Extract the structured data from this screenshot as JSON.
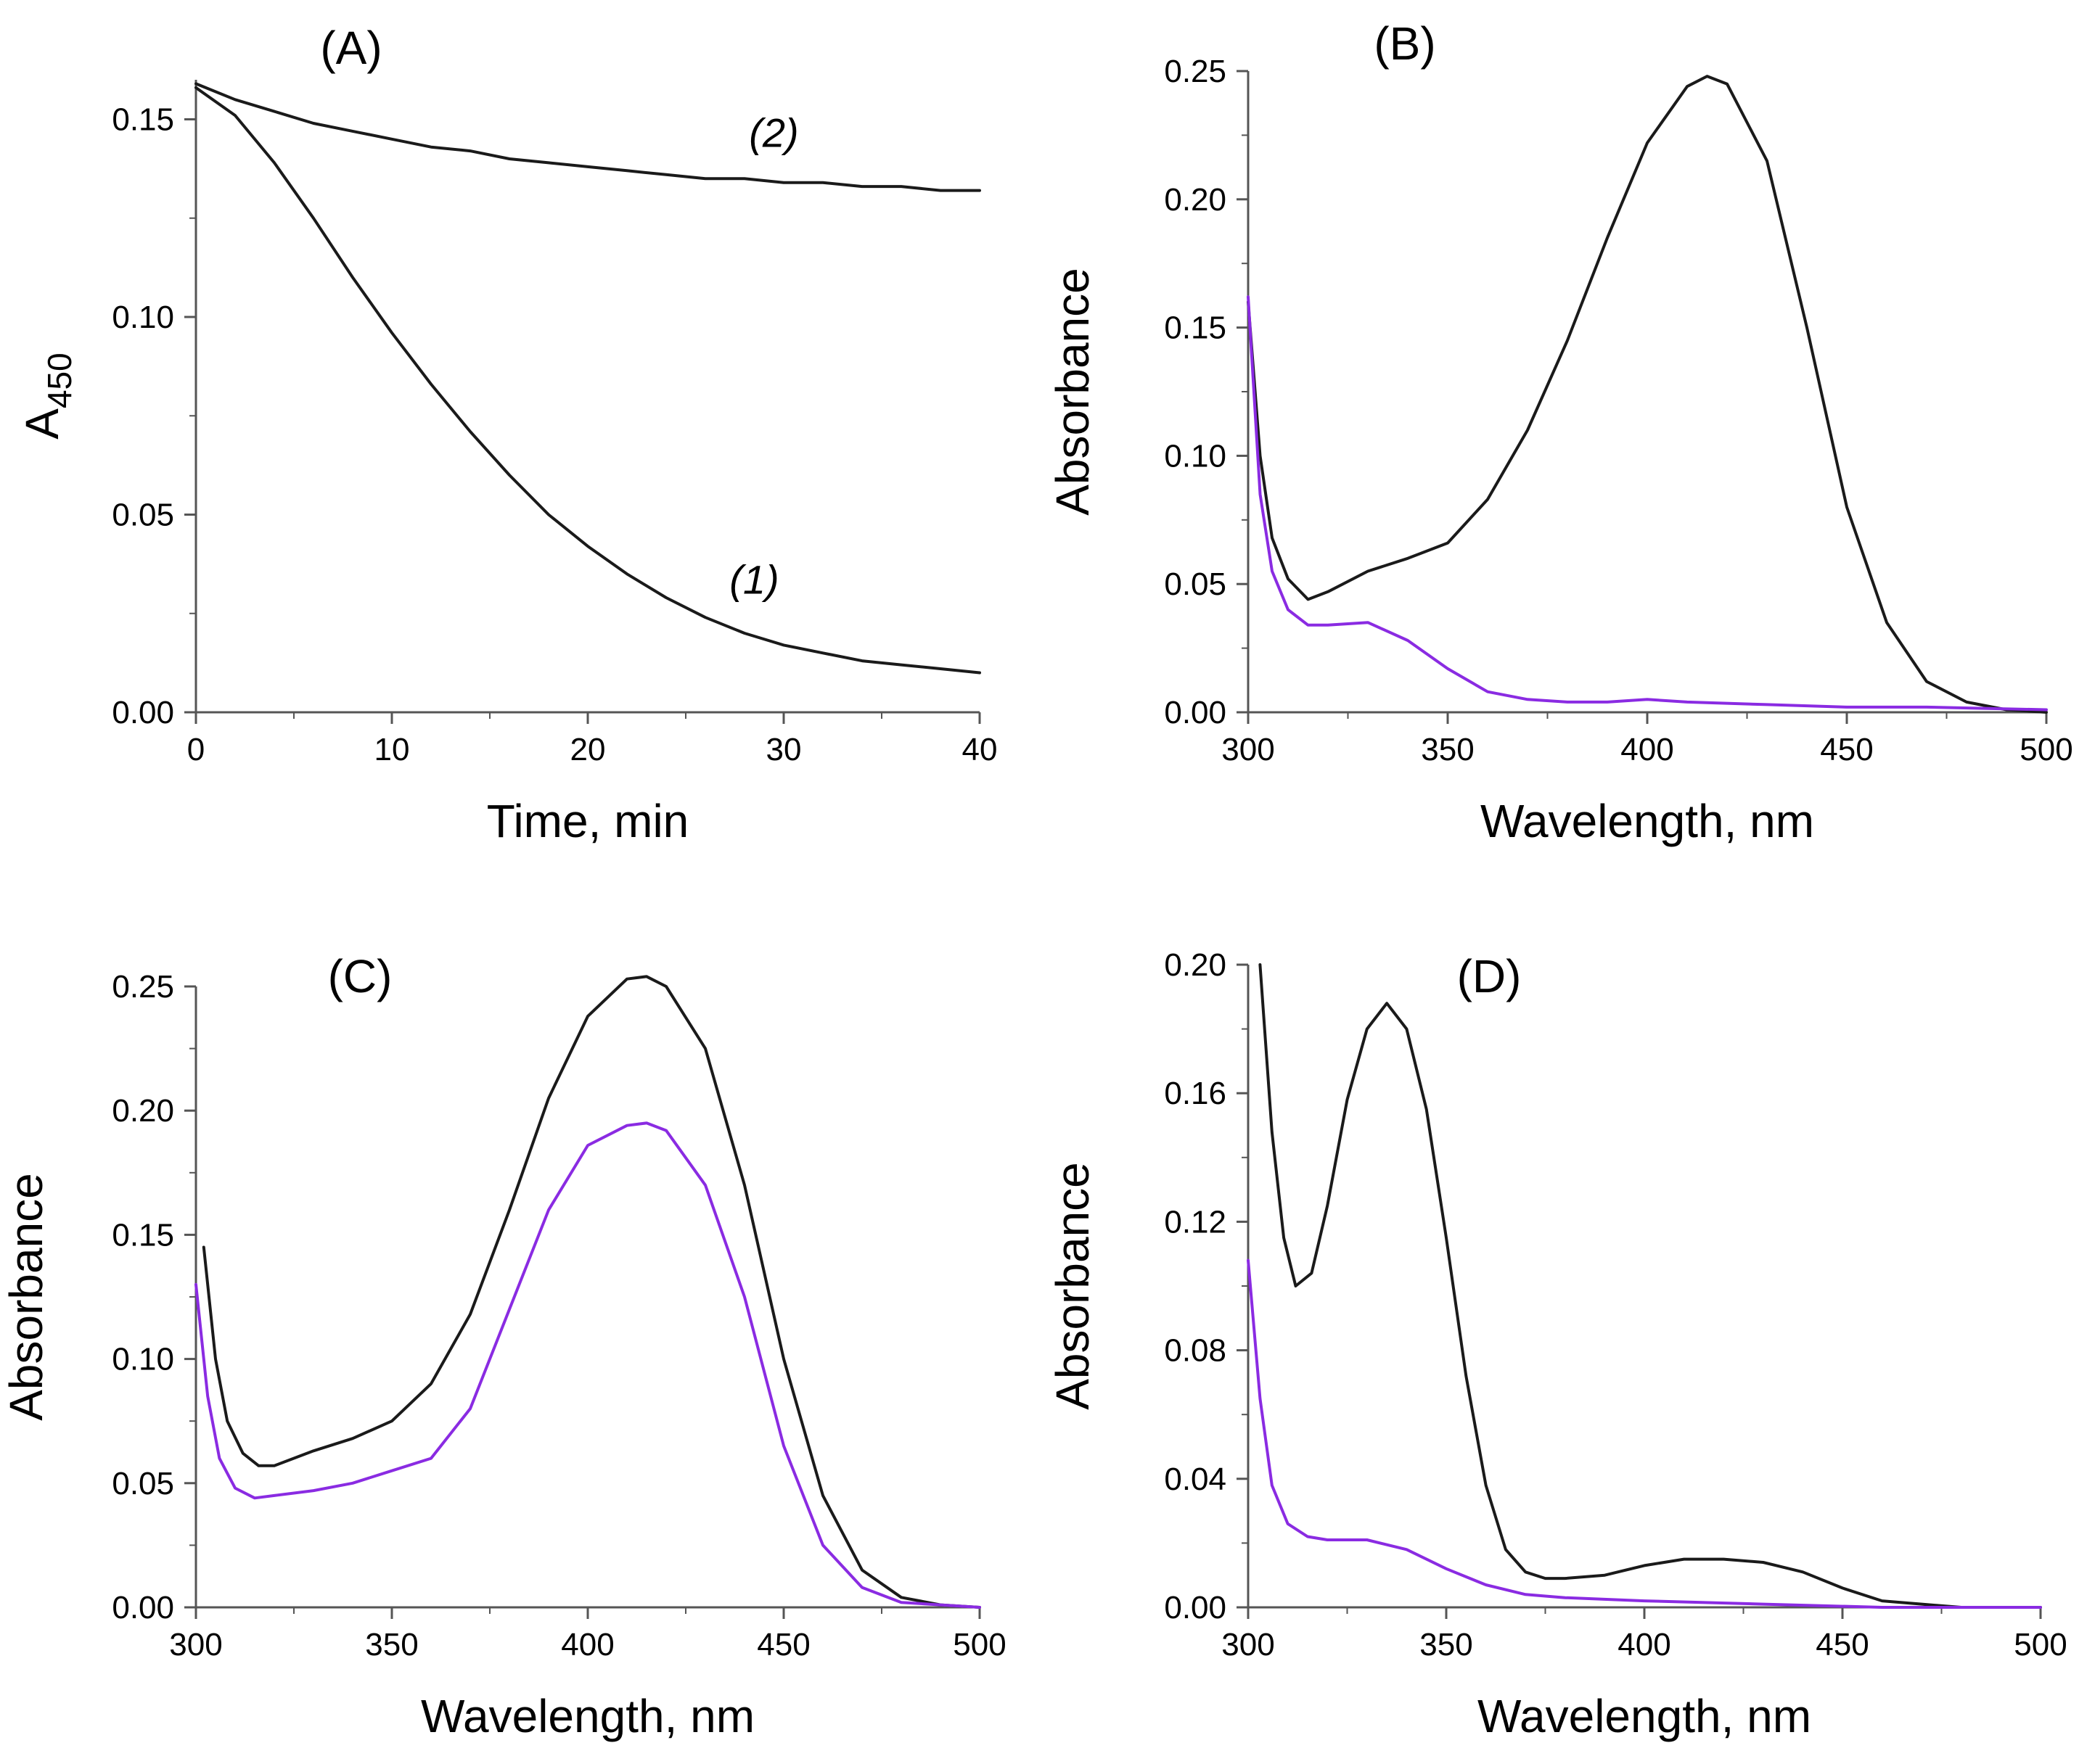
{
  "chart_data": [
    {
      "panel": "(A)",
      "type": "line",
      "xlabel": "Time, min",
      "ylabel_main": "A",
      "ylabel_sub": "450",
      "xlim": [
        0,
        40
      ],
      "ylim": [
        0,
        0.16
      ],
      "xticks": [
        "0",
        "10",
        "20",
        "30",
        "40"
      ],
      "xtick_values": [
        0,
        10,
        20,
        30,
        40
      ],
      "yticks": [
        "0.00",
        "0.05",
        "0.10",
        "0.15"
      ],
      "ytick_values": [
        0,
        0.05,
        0.1,
        0.15
      ],
      "series": [
        {
          "name": "(1)",
          "color": "#1a1a1a",
          "x": [
            0,
            2,
            4,
            6,
            8,
            10,
            12,
            14,
            16,
            18,
            20,
            22,
            24,
            26,
            28,
            30,
            32,
            34,
            36,
            38,
            40
          ],
          "y": [
            0.158,
            0.151,
            0.139,
            0.125,
            0.11,
            0.096,
            0.083,
            0.071,
            0.06,
            0.05,
            0.042,
            0.035,
            0.029,
            0.024,
            0.02,
            0.017,
            0.015,
            0.013,
            0.012,
            0.011,
            0.01
          ]
        },
        {
          "name": "(2)",
          "color": "#1a1a1a",
          "x": [
            0,
            2,
            4,
            6,
            8,
            10,
            12,
            14,
            16,
            18,
            20,
            22,
            24,
            26,
            28,
            30,
            32,
            34,
            36,
            38,
            40
          ],
          "y": [
            0.159,
            0.155,
            0.152,
            0.149,
            0.147,
            0.145,
            0.143,
            0.142,
            0.14,
            0.139,
            0.138,
            0.137,
            0.136,
            0.135,
            0.135,
            0.134,
            0.134,
            0.133,
            0.133,
            0.132,
            0.132
          ]
        }
      ],
      "annotations": [
        {
          "text": "(1)",
          "x": 28.5,
          "y": 0.03
        },
        {
          "text": "(2)",
          "x": 29.5,
          "y": 0.143
        }
      ]
    },
    {
      "panel": "(B)",
      "type": "line",
      "xlabel": "Wavelength, nm",
      "ylabel_main": "Absorbance",
      "ylabel_sub": "",
      "xlim": [
        300,
        500
      ],
      "ylim": [
        0,
        0.25
      ],
      "xticks": [
        "300",
        "350",
        "400",
        "450",
        "500"
      ],
      "xtick_values": [
        300,
        350,
        400,
        450,
        500
      ],
      "yticks": [
        "0.00",
        "0.05",
        "0.10",
        "0.15",
        "0.20",
        "0.25"
      ],
      "ytick_values": [
        0,
        0.05,
        0.1,
        0.15,
        0.2,
        0.25
      ],
      "series": [
        {
          "name": "black",
          "color": "#1a1a1a",
          "x": [
            300,
            303,
            306,
            310,
            315,
            320,
            330,
            340,
            350,
            360,
            370,
            380,
            390,
            400,
            410,
            415,
            420,
            430,
            440,
            450,
            460,
            470,
            480,
            490,
            500
          ],
          "y": [
            0.16,
            0.1,
            0.068,
            0.052,
            0.044,
            0.047,
            0.055,
            0.06,
            0.066,
            0.083,
            0.11,
            0.145,
            0.185,
            0.222,
            0.244,
            0.248,
            0.245,
            0.215,
            0.15,
            0.08,
            0.035,
            0.012,
            0.004,
            0.001,
            0.0
          ]
        },
        {
          "name": "purple",
          "color": "#8a2be2",
          "x": [
            300,
            303,
            306,
            310,
            315,
            320,
            330,
            340,
            350,
            360,
            370,
            380,
            390,
            400,
            410,
            430,
            450,
            470,
            500
          ],
          "y": [
            0.162,
            0.085,
            0.055,
            0.04,
            0.034,
            0.034,
            0.035,
            0.028,
            0.017,
            0.008,
            0.005,
            0.004,
            0.004,
            0.005,
            0.004,
            0.003,
            0.002,
            0.002,
            0.001
          ]
        }
      ]
    },
    {
      "panel": "(C)",
      "type": "line",
      "xlabel": "Wavelength, nm",
      "ylabel_main": "Absorbance",
      "ylabel_sub": "",
      "xlim": [
        300,
        500
      ],
      "ylim": [
        0,
        0.25
      ],
      "xticks": [
        "300",
        "350",
        "400",
        "450",
        "500"
      ],
      "xtick_values": [
        300,
        350,
        400,
        450,
        500
      ],
      "yticks": [
        "0.00",
        "0.05",
        "0.10",
        "0.15",
        "0.20",
        "0.25"
      ],
      "ytick_values": [
        0,
        0.05,
        0.1,
        0.15,
        0.2,
        0.25
      ],
      "series": [
        {
          "name": "black",
          "color": "#1a1a1a",
          "x": [
            302,
            305,
            308,
            312,
            316,
            320,
            330,
            340,
            350,
            360,
            370,
            380,
            390,
            400,
            410,
            415,
            420,
            430,
            440,
            450,
            460,
            470,
            480,
            490,
            500
          ],
          "y": [
            0.145,
            0.1,
            0.075,
            0.062,
            0.057,
            0.057,
            0.063,
            0.068,
            0.075,
            0.09,
            0.118,
            0.16,
            0.205,
            0.238,
            0.253,
            0.254,
            0.25,
            0.225,
            0.17,
            0.1,
            0.045,
            0.015,
            0.004,
            0.001,
            0.0
          ]
        },
        {
          "name": "purple",
          "color": "#8a2be2",
          "x": [
            300,
            303,
            306,
            310,
            315,
            320,
            330,
            340,
            350,
            360,
            370,
            380,
            390,
            400,
            410,
            415,
            420,
            430,
            440,
            450,
            460,
            470,
            480,
            490,
            500
          ],
          "y": [
            0.13,
            0.085,
            0.06,
            0.048,
            0.044,
            0.045,
            0.047,
            0.05,
            0.055,
            0.06,
            0.08,
            0.12,
            0.16,
            0.186,
            0.194,
            0.195,
            0.192,
            0.17,
            0.125,
            0.065,
            0.025,
            0.008,
            0.002,
            0.001,
            0.0
          ]
        }
      ]
    },
    {
      "panel": "(D)",
      "type": "line",
      "xlabel": "Wavelength, nm",
      "ylabel_main": "Absorbance",
      "ylabel_sub": "",
      "xlim": [
        300,
        500
      ],
      "ylim": [
        0,
        0.2
      ],
      "xticks": [
        "300",
        "350",
        "400",
        "450",
        "500"
      ],
      "xtick_values": [
        300,
        350,
        400,
        450,
        500
      ],
      "yticks": [
        "0.00",
        "0.04",
        "0.08",
        "0.12",
        "0.16",
        "0.20"
      ],
      "ytick_values": [
        0,
        0.04,
        0.08,
        0.12,
        0.16,
        0.2
      ],
      "series": [
        {
          "name": "black",
          "color": "#1a1a1a",
          "x": [
            303,
            306,
            309,
            312,
            316,
            320,
            325,
            330,
            335,
            340,
            345,
            350,
            355,
            360,
            365,
            370,
            375,
            380,
            390,
            400,
            410,
            420,
            430,
            440,
            450,
            460,
            470,
            480,
            500
          ],
          "y": [
            0.2,
            0.148,
            0.115,
            0.1,
            0.104,
            0.125,
            0.158,
            0.18,
            0.188,
            0.18,
            0.155,
            0.115,
            0.072,
            0.038,
            0.018,
            0.011,
            0.009,
            0.009,
            0.01,
            0.013,
            0.015,
            0.015,
            0.014,
            0.011,
            0.006,
            0.002,
            0.001,
            0.0,
            0.0
          ]
        },
        {
          "name": "purple",
          "color": "#8a2be2",
          "x": [
            300,
            303,
            306,
            310,
            315,
            320,
            330,
            340,
            350,
            360,
            370,
            380,
            400,
            430,
            460,
            500
          ],
          "y": [
            0.108,
            0.065,
            0.038,
            0.026,
            0.022,
            0.021,
            0.021,
            0.018,
            0.012,
            0.007,
            0.004,
            0.003,
            0.002,
            0.001,
            0.0,
            0.0
          ]
        }
      ]
    }
  ]
}
